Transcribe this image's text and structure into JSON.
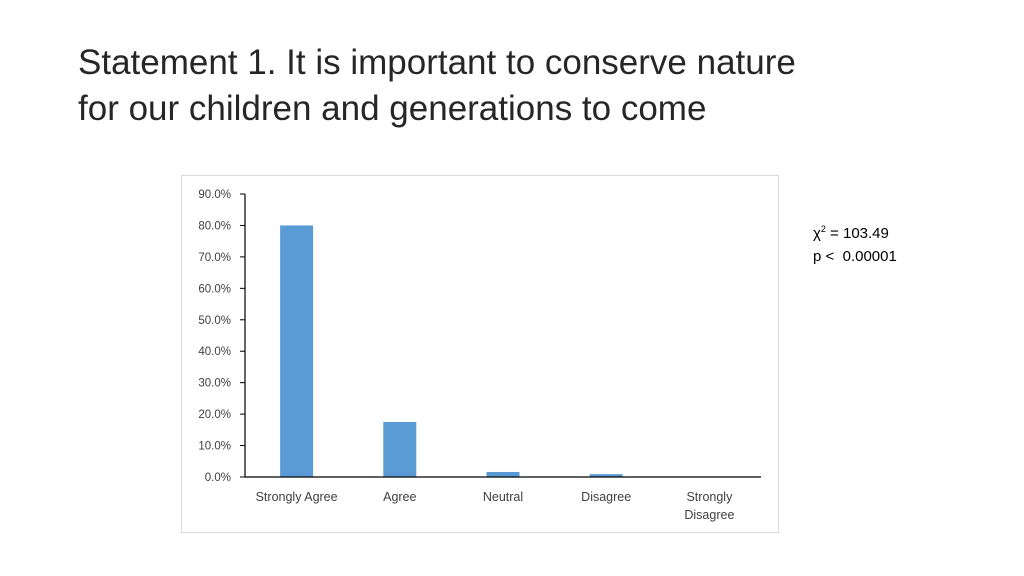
{
  "slide": {
    "title": "Statement 1.  It is important to conserve nature\nfor our children and generations to come"
  },
  "stats": {
    "chi_symbol": "χ",
    "chi_exponent": "2",
    "chi_value": " = 103.49",
    "p_text": "p <  0.00001"
  },
  "chart_data": {
    "type": "bar",
    "title": "",
    "xlabel": "",
    "ylabel": "",
    "categories": [
      "Strongly Agree",
      "Agree",
      "Neutral",
      "Disagree",
      "Strongly Disagree"
    ],
    "category_label_lines": [
      [
        "Strongly Agree"
      ],
      [
        "Agree"
      ],
      [
        "Neutral"
      ],
      [
        "Disagree"
      ],
      [
        "Strongly",
        "Disagree"
      ]
    ],
    "values": [
      80.0,
      17.5,
      1.6,
      0.9,
      0.0
    ],
    "ylim": [
      0,
      90
    ],
    "yticks": [
      0,
      10,
      20,
      30,
      40,
      50,
      60,
      70,
      80,
      90
    ],
    "ytick_labels": [
      "0.0%",
      "10.0%",
      "20.0%",
      "30.0%",
      "40.0%",
      "50.0%",
      "60.0%",
      "70.0%",
      "80.0%",
      "90.0%"
    ],
    "bar_color": "#5b9bd5",
    "grid": false,
    "legend": "none"
  }
}
